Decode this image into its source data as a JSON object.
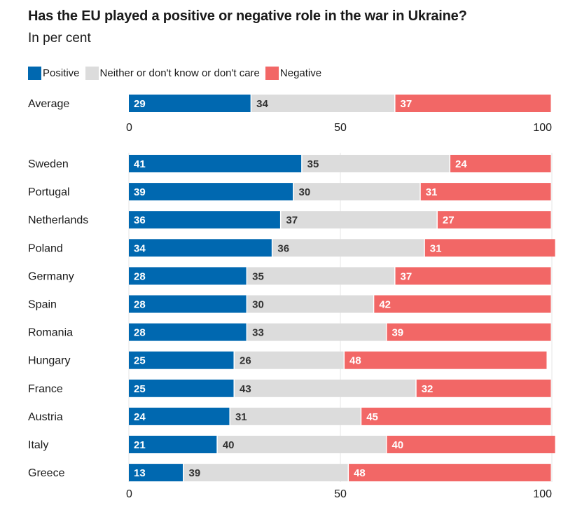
{
  "chart_data": {
    "type": "bar",
    "stacked": true,
    "orientation": "horizontal",
    "title": "Has the EU played a positive or negative role in the war in Ukraine?",
    "subtitle": "In per cent",
    "xlim": [
      0,
      100
    ],
    "xticks": [
      0,
      50,
      100
    ],
    "legend_position": "top-left",
    "series": [
      {
        "name": "Positive",
        "color": "#0068b0",
        "label_color": "#ffffff"
      },
      {
        "name": "Neither or don't know or don't care",
        "color": "#dcdcdc",
        "label_color": "#333333"
      },
      {
        "name": "Negative",
        "color": "#f26766",
        "label_color": "#ffffff"
      }
    ],
    "average": {
      "category": "Average",
      "values": [
        29,
        34,
        37
      ]
    },
    "categories": [
      "Sweden",
      "Portugal",
      "Netherlands",
      "Poland",
      "Germany",
      "Spain",
      "Romania",
      "Hungary",
      "France",
      "Austria",
      "Italy",
      "Greece"
    ],
    "values": [
      [
        41,
        35,
        24
      ],
      [
        39,
        30,
        31
      ],
      [
        36,
        37,
        27
      ],
      [
        34,
        36,
        31
      ],
      [
        28,
        35,
        37
      ],
      [
        28,
        30,
        42
      ],
      [
        28,
        33,
        39
      ],
      [
        25,
        26,
        48
      ],
      [
        25,
        43,
        32
      ],
      [
        24,
        31,
        45
      ],
      [
        21,
        40,
        40
      ],
      [
        13,
        39,
        48
      ]
    ]
  }
}
